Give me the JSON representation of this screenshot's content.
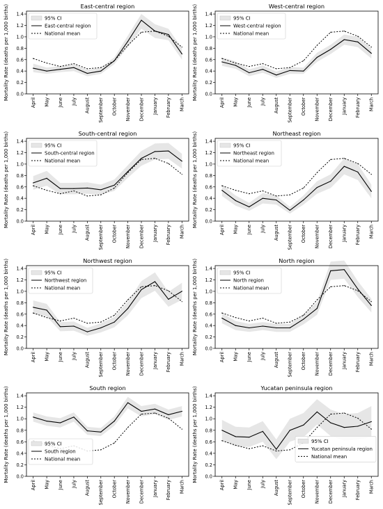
{
  "months": [
    "April",
    "May",
    "June",
    "July",
    "August",
    "September",
    "October",
    "November",
    "December",
    "January",
    "February",
    "March"
  ],
  "y_ticks": [
    "0.0",
    "0.2",
    "0.4",
    "0.6",
    "0.8",
    "1.0",
    "1.2",
    "1.4"
  ],
  "ylabel": "Mortality Rate (deaths per 1,000 births)",
  "ci_label": "95% CI",
  "national_label": "National mean",
  "colors": {
    "ci": "#e6e6e6",
    "line": "#000000"
  },
  "chart_data": [
    {
      "type": "line",
      "title": "East-central region",
      "legend_placement": "upper-left",
      "x": [
        "April",
        "May",
        "June",
        "July",
        "August",
        "September",
        "October",
        "November",
        "December",
        "January",
        "February",
        "March"
      ],
      "ylim": [
        0,
        1.45
      ],
      "series": [
        {
          "name": "East-central region",
          "style": "solid",
          "values": [
            0.45,
            0.4,
            0.43,
            0.46,
            0.36,
            0.4,
            0.58,
            0.92,
            1.29,
            1.1,
            1.04,
            0.7
          ]
        },
        {
          "name": "National mean",
          "style": "dotted",
          "values": [
            0.62,
            0.54,
            0.48,
            0.53,
            0.44,
            0.46,
            0.58,
            0.85,
            1.08,
            1.1,
            1.01,
            0.82
          ]
        }
      ],
      "ci_lower": [
        0.38,
        0.35,
        0.38,
        0.4,
        0.31,
        0.35,
        0.52,
        0.82,
        1.14,
        0.98,
        0.94,
        0.6
      ],
      "ci_upper": [
        0.53,
        0.46,
        0.49,
        0.52,
        0.42,
        0.46,
        0.64,
        1.02,
        1.4,
        1.22,
        1.14,
        0.8
      ]
    },
    {
      "type": "line",
      "title": "West-central region",
      "legend_placement": "upper-left",
      "x": [
        "April",
        "May",
        "June",
        "July",
        "August",
        "September",
        "October",
        "November",
        "December",
        "January",
        "February",
        "March"
      ],
      "ylim": [
        0,
        1.45
      ],
      "series": [
        {
          "name": "West-central region",
          "style": "solid",
          "values": [
            0.56,
            0.5,
            0.37,
            0.43,
            0.33,
            0.41,
            0.4,
            0.64,
            0.78,
            0.95,
            0.91,
            0.71
          ]
        },
        {
          "name": "National mean",
          "style": "dotted",
          "values": [
            0.62,
            0.54,
            0.48,
            0.53,
            0.44,
            0.46,
            0.58,
            0.85,
            1.08,
            1.1,
            1.01,
            0.82
          ]
        }
      ],
      "ci_lower": [
        0.49,
        0.44,
        0.31,
        0.37,
        0.28,
        0.35,
        0.35,
        0.56,
        0.7,
        0.86,
        0.82,
        0.62
      ],
      "ci_upper": [
        0.64,
        0.57,
        0.43,
        0.5,
        0.39,
        0.47,
        0.46,
        0.72,
        0.86,
        1.04,
        1.0,
        0.8
      ]
    },
    {
      "type": "line",
      "title": "South-central region",
      "legend_placement": "upper-left",
      "x": [
        "April",
        "May",
        "June",
        "July",
        "August",
        "September",
        "October",
        "November",
        "December",
        "January",
        "February",
        "March"
      ],
      "ylim": [
        0,
        1.45
      ],
      "series": [
        {
          "name": "South-central region",
          "style": "solid",
          "values": [
            0.67,
            0.75,
            0.57,
            0.57,
            0.58,
            0.55,
            0.63,
            0.87,
            1.1,
            1.22,
            1.23,
            1.05
          ]
        },
        {
          "name": "National mean",
          "style": "dotted",
          "values": [
            0.62,
            0.54,
            0.48,
            0.53,
            0.44,
            0.46,
            0.58,
            0.85,
            1.08,
            1.1,
            1.01,
            0.82
          ]
        }
      ],
      "ci_lower": [
        0.55,
        0.62,
        0.47,
        0.47,
        0.48,
        0.46,
        0.53,
        0.76,
        0.97,
        1.08,
        1.09,
        0.92
      ],
      "ci_upper": [
        0.79,
        0.88,
        0.67,
        0.67,
        0.68,
        0.64,
        0.73,
        0.98,
        1.23,
        1.36,
        1.37,
        1.18
      ]
    },
    {
      "type": "line",
      "title": "Northeast region",
      "legend_placement": "upper-left",
      "x": [
        "April",
        "May",
        "June",
        "July",
        "August",
        "September",
        "October",
        "November",
        "December",
        "January",
        "February",
        "March"
      ],
      "ylim": [
        0,
        1.45
      ],
      "series": [
        {
          "name": "Northeast region",
          "style": "solid",
          "values": [
            0.54,
            0.36,
            0.25,
            0.4,
            0.37,
            0.19,
            0.37,
            0.59,
            0.7,
            0.96,
            0.86,
            0.52
          ]
        },
        {
          "name": "National mean",
          "style": "dotted",
          "values": [
            0.62,
            0.54,
            0.48,
            0.53,
            0.44,
            0.46,
            0.58,
            0.85,
            1.08,
            1.1,
            1.01,
            0.82
          ]
        }
      ],
      "ci_lower": [
        0.44,
        0.27,
        0.18,
        0.31,
        0.29,
        0.13,
        0.29,
        0.48,
        0.58,
        0.82,
        0.72,
        0.4
      ],
      "ci_upper": [
        0.64,
        0.45,
        0.32,
        0.49,
        0.45,
        0.25,
        0.45,
        0.7,
        0.82,
        1.1,
        1.0,
        0.64
      ]
    },
    {
      "type": "line",
      "title": "Northwest region",
      "legend_placement": "upper-left",
      "x": [
        "April",
        "May",
        "June",
        "July",
        "August",
        "September",
        "October",
        "November",
        "December",
        "January",
        "February",
        "March"
      ],
      "ylim": [
        0,
        1.45
      ],
      "series": [
        {
          "name": "Northwest region",
          "style": "solid",
          "values": [
            0.72,
            0.67,
            0.38,
            0.39,
            0.29,
            0.36,
            0.46,
            0.7,
            1.03,
            1.17,
            0.86,
            1.0
          ]
        },
        {
          "name": "National mean",
          "style": "dotted",
          "values": [
            0.62,
            0.54,
            0.48,
            0.53,
            0.44,
            0.46,
            0.58,
            0.85,
            1.08,
            1.1,
            1.01,
            0.82
          ]
        }
      ],
      "ci_lower": [
        0.6,
        0.56,
        0.3,
        0.31,
        0.22,
        0.28,
        0.37,
        0.58,
        0.88,
        1.01,
        0.73,
        0.85
      ],
      "ci_upper": [
        0.84,
        0.78,
        0.46,
        0.47,
        0.36,
        0.44,
        0.55,
        0.82,
        1.18,
        1.33,
        0.99,
        1.15
      ]
    },
    {
      "type": "line",
      "title": "North region",
      "legend_placement": "upper-left",
      "x": [
        "April",
        "May",
        "June",
        "July",
        "August",
        "September",
        "October",
        "November",
        "December",
        "January",
        "February",
        "March"
      ],
      "ylim": [
        0,
        1.45
      ],
      "series": [
        {
          "name": "North region",
          "style": "solid",
          "values": [
            0.53,
            0.4,
            0.36,
            0.39,
            0.36,
            0.36,
            0.51,
            0.7,
            1.36,
            1.38,
            1.04,
            0.75
          ]
        },
        {
          "name": "National mean",
          "style": "dotted",
          "values": [
            0.62,
            0.54,
            0.48,
            0.53,
            0.44,
            0.46,
            0.58,
            0.85,
            1.08,
            1.1,
            1.01,
            0.82
          ]
        }
      ],
      "ci_lower": [
        0.44,
        0.32,
        0.29,
        0.32,
        0.29,
        0.29,
        0.42,
        0.59,
        1.2,
        1.22,
        0.9,
        0.63
      ],
      "ci_upper": [
        0.62,
        0.48,
        0.43,
        0.46,
        0.43,
        0.43,
        0.6,
        0.81,
        1.52,
        1.54,
        1.18,
        0.87
      ]
    },
    {
      "type": "line",
      "title": "South region",
      "legend_placement": "center-left",
      "x": [
        "April",
        "May",
        "June",
        "July",
        "August",
        "September",
        "October",
        "November",
        "December",
        "January",
        "February",
        "March"
      ],
      "ylim": [
        0,
        1.45
      ],
      "series": [
        {
          "name": "South region",
          "style": "solid",
          "values": [
            1.03,
            0.96,
            0.93,
            1.03,
            0.79,
            0.77,
            0.96,
            1.28,
            1.13,
            1.17,
            1.07,
            1.13
          ]
        },
        {
          "name": "National mean",
          "style": "dotted",
          "values": [
            0.62,
            0.54,
            0.48,
            0.53,
            0.44,
            0.46,
            0.58,
            0.85,
            1.08,
            1.1,
            1.01,
            0.82
          ]
        }
      ],
      "ci_lower": [
        0.95,
        0.88,
        0.85,
        0.95,
        0.72,
        0.7,
        0.88,
        1.18,
        1.04,
        1.08,
        0.98,
        1.04
      ],
      "ci_upper": [
        1.11,
        1.04,
        1.01,
        1.11,
        0.86,
        0.84,
        1.04,
        1.38,
        1.22,
        1.26,
        1.16,
        1.22
      ]
    },
    {
      "type": "line",
      "title": "Yucatan peninsula region",
      "legend_placement": "center-right",
      "x": [
        "April",
        "May",
        "June",
        "July",
        "August",
        "September",
        "October",
        "November",
        "December",
        "January",
        "February",
        "March"
      ],
      "ylim": [
        0,
        1.45
      ],
      "series": [
        {
          "name": "Yucatan peninsula region",
          "style": "solid",
          "values": [
            0.8,
            0.69,
            0.68,
            0.78,
            0.47,
            0.8,
            0.89,
            1.12,
            0.93,
            0.85,
            0.87,
            0.95
          ]
        },
        {
          "name": "National mean",
          "style": "dotted",
          "values": [
            0.62,
            0.54,
            0.48,
            0.53,
            0.44,
            0.46,
            0.58,
            0.85,
            1.08,
            1.1,
            1.01,
            0.82
          ]
        }
      ],
      "ci_lower": [
        0.62,
        0.52,
        0.51,
        0.6,
        0.3,
        0.6,
        0.68,
        0.9,
        0.7,
        0.62,
        0.64,
        0.68
      ],
      "ci_upper": [
        0.98,
        0.86,
        0.85,
        0.96,
        0.64,
        1.0,
        1.1,
        1.34,
        1.16,
        1.08,
        1.1,
        1.22
      ]
    }
  ]
}
